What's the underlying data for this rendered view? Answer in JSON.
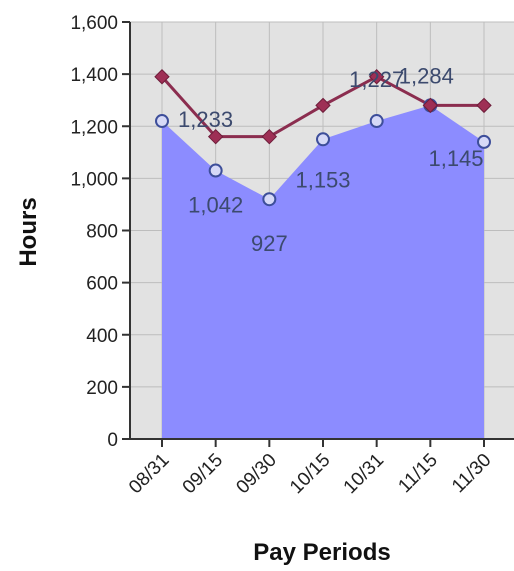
{
  "chart_data": {
    "type": "area",
    "title": "",
    "xlabel": "Pay Periods",
    "ylabel": "Hours",
    "ylim": [
      0,
      1600
    ],
    "yticks": [
      "0",
      "200",
      "400",
      "600",
      "800",
      "1,000",
      "1,200",
      "1,400",
      "1,600"
    ],
    "categories": [
      "08/31",
      "09/15",
      "09/30",
      "10/15",
      "10/31",
      "11/15",
      "11/30"
    ],
    "grid": true,
    "legend": "none",
    "series": [
      {
        "type": "area",
        "values": [
          1220,
          1030,
          920,
          1150,
          1220,
          1280,
          1140
        ],
        "color": "#8c8cff",
        "marker_color": "#3d4e9a"
      },
      {
        "type": "line",
        "values": [
          1390,
          1160,
          1160,
          1280,
          1390,
          1280,
          1280
        ],
        "color": "#8b2d4f",
        "marker": "diamond"
      }
    ],
    "data_labels": [
      "1,233",
      "1,042",
      "927",
      "1,153",
      "1,227",
      "1,284",
      "1,145"
    ]
  }
}
